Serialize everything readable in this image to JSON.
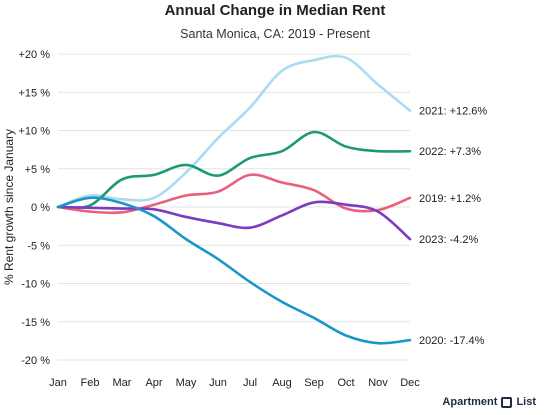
{
  "title": "Annual Change in Median Rent",
  "subtitle": "Santa Monica, CA: 2019 - Present",
  "brand": {
    "left": "Apartment",
    "right": "List"
  },
  "chart_data": {
    "type": "line",
    "ylabel": "% Rent growth since January",
    "xlabel": "",
    "categories": [
      "Jan",
      "Feb",
      "Mar",
      "Apr",
      "May",
      "Jun",
      "Jul",
      "Aug",
      "Sep",
      "Oct",
      "Nov",
      "Dec"
    ],
    "ylim": [
      -20,
      20
    ],
    "yticks": [
      20,
      15,
      10,
      5,
      0,
      -5,
      -10,
      -15,
      -20
    ],
    "ytick_labels": [
      "+20 %",
      "+15 %",
      "+10 %",
      "+5 %",
      "0 %",
      "-5 %",
      "-10 %",
      "-15 %",
      "-20 %"
    ],
    "grid": true,
    "series": [
      {
        "name": "2021",
        "label": "2021: +12.6%",
        "color": "#a9dcf0",
        "values": [
          0,
          1.5,
          1.0,
          1.2,
          4.5,
          9.0,
          13.0,
          17.8,
          19.2,
          19.5,
          16.0,
          12.6
        ]
      },
      {
        "name": "2022",
        "label": "2022: +7.3%",
        "color": "#1f9a6e",
        "values": [
          0,
          0.2,
          3.6,
          4.2,
          5.5,
          4.1,
          6.4,
          7.3,
          9.8,
          7.9,
          7.3,
          7.3
        ]
      },
      {
        "name": "2019",
        "label": "2019: +1.2%",
        "color": "#e8607a",
        "values": [
          0,
          -0.6,
          -0.7,
          0.3,
          1.5,
          2.0,
          4.2,
          3.2,
          2.2,
          -0.2,
          -0.4,
          1.2
        ]
      },
      {
        "name": "2023",
        "label": "2023: -4.2%",
        "color": "#7b3cc1",
        "values": [
          0,
          -0.1,
          -0.2,
          -0.3,
          -1.3,
          -2.1,
          -2.7,
          -1.1,
          0.6,
          0.3,
          -0.6,
          -4.2
        ]
      },
      {
        "name": "2020",
        "label": "2020: -17.4%",
        "color": "#1b96c9",
        "values": [
          0,
          1.2,
          0.5,
          -1.2,
          -4.2,
          -6.8,
          -9.8,
          -12.4,
          -14.5,
          -16.8,
          -17.8,
          -17.4
        ]
      }
    ]
  }
}
